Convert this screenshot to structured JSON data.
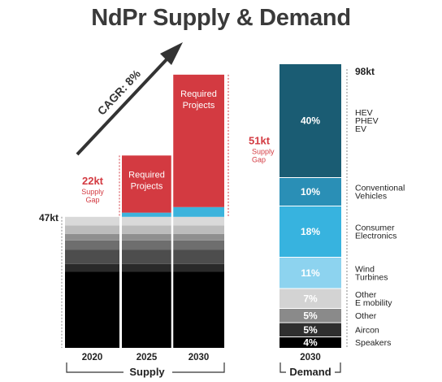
{
  "title": "NdPr Supply & Demand",
  "chart_data": [
    {
      "type": "bar",
      "stacked": true,
      "group_label": "Supply",
      "categories": [
        "2020",
        "2025",
        "2030"
      ],
      "existing_supply_label": "47kt",
      "existing_supply": 47,
      "gap_supply_values": [
        0,
        1.5,
        3.5
      ],
      "required_projects": {
        "label": "Required Projects",
        "values": [
          0,
          20.5,
          47.5
        ]
      },
      "supply_gaps": [
        {
          "category": "2025",
          "value_label": "22kt",
          "label": "Supply\nGap",
          "value": 22
        },
        {
          "category": "2030",
          "value_label": "51kt",
          "label": "Supply\nGap",
          "value": 51
        }
      ],
      "trend_annotation": "CAGR: 8%",
      "colors": {
        "required_projects": "#d33a41",
        "gap_supply": "#3cb3dc",
        "existing_layers": [
          "#000000",
          "#2a2a2a",
          "#4d4d4d",
          "#6e6e6e",
          "#8f8f8f",
          "#bcbcbc",
          "#d9d9d9"
        ]
      }
    },
    {
      "type": "bar",
      "stacked": true,
      "group_label": "Demand",
      "categories": [
        "2030"
      ],
      "total_label": "98kt",
      "total": 98,
      "segments": [
        {
          "label": "4%",
          "value": 4,
          "name": "Speakers",
          "color": "#000000"
        },
        {
          "label": "5%",
          "value": 5,
          "name": "Aircon",
          "color": "#2f2f2f"
        },
        {
          "label": "5%",
          "value": 5,
          "name": "Other",
          "color": "#8a8a8a"
        },
        {
          "label": "7%",
          "value": 7,
          "name": "Other\nE mobility",
          "color": "#d3d3d3"
        },
        {
          "label": "11%",
          "value": 11,
          "name": "Wind\nTurbines",
          "color": "#8dd3ef"
        },
        {
          "label": "18%",
          "value": 18,
          "name": "Consumer\nElectronics",
          "color": "#37b3df"
        },
        {
          "label": "10%",
          "value": 10,
          "name": "Conventional\nVehicles",
          "color": "#2a8fb6"
        },
        {
          "label": "40%",
          "value": 40,
          "name": "HEV\nPHEV\nEV",
          "color": "#1a5c73"
        }
      ]
    }
  ]
}
